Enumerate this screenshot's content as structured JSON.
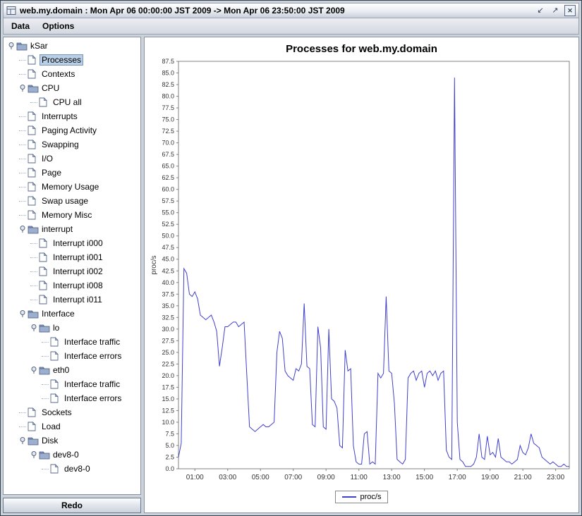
{
  "window": {
    "title": "web.my.domain : Mon Apr 06 00:00:00 JST 2009 -> Mon Apr 06 23:50:00 JST 2009",
    "controls": {
      "iconify_glyph": "↙",
      "maximize_glyph": "↗",
      "close_glyph": "✕"
    }
  },
  "menu": {
    "items": [
      "Data",
      "Options"
    ]
  },
  "tree": {
    "items": [
      {
        "label": "kSar",
        "level": 0,
        "type": "folder",
        "expandable": true
      },
      {
        "label": "Processes",
        "level": 1,
        "type": "leaf",
        "selected": true
      },
      {
        "label": "Contexts",
        "level": 1,
        "type": "leaf"
      },
      {
        "label": "CPU",
        "level": 1,
        "type": "folder",
        "expandable": true
      },
      {
        "label": "CPU all",
        "level": 2,
        "type": "leaf"
      },
      {
        "label": "Interrupts",
        "level": 1,
        "type": "leaf"
      },
      {
        "label": "Paging Activity",
        "level": 1,
        "type": "leaf"
      },
      {
        "label": "Swapping",
        "level": 1,
        "type": "leaf"
      },
      {
        "label": "I/O",
        "level": 1,
        "type": "leaf"
      },
      {
        "label": "Page",
        "level": 1,
        "type": "leaf"
      },
      {
        "label": "Memory Usage",
        "level": 1,
        "type": "leaf"
      },
      {
        "label": "Swap usage",
        "level": 1,
        "type": "leaf"
      },
      {
        "label": "Memory Misc",
        "level": 1,
        "type": "leaf"
      },
      {
        "label": "interrupt",
        "level": 1,
        "type": "folder",
        "expandable": true
      },
      {
        "label": "Interrupt i000",
        "level": 2,
        "type": "leaf"
      },
      {
        "label": "Interrupt i001",
        "level": 2,
        "type": "leaf"
      },
      {
        "label": "Interrupt i002",
        "level": 2,
        "type": "leaf"
      },
      {
        "label": "Interrupt i008",
        "level": 2,
        "type": "leaf"
      },
      {
        "label": "Interrupt i011",
        "level": 2,
        "type": "leaf"
      },
      {
        "label": "Interface",
        "level": 1,
        "type": "folder",
        "expandable": true
      },
      {
        "label": "lo",
        "level": 2,
        "type": "folder",
        "expandable": true
      },
      {
        "label": "Interface traffic",
        "level": 3,
        "type": "leaf"
      },
      {
        "label": "Interface errors",
        "level": 3,
        "type": "leaf"
      },
      {
        "label": "eth0",
        "level": 2,
        "type": "folder",
        "expandable": true
      },
      {
        "label": "Interface traffic",
        "level": 3,
        "type": "leaf"
      },
      {
        "label": "Interface errors",
        "level": 3,
        "type": "leaf"
      },
      {
        "label": "Sockets",
        "level": 1,
        "type": "leaf"
      },
      {
        "label": "Load",
        "level": 1,
        "type": "leaf"
      },
      {
        "label": "Disk",
        "level": 1,
        "type": "folder",
        "expandable": true
      },
      {
        "label": "dev8-0",
        "level": 2,
        "type": "folder",
        "expandable": true
      },
      {
        "label": "dev8-0",
        "level": 3,
        "type": "leaf"
      }
    ],
    "redo_label": "Redo"
  },
  "colors": {
    "series_line": "#4040cc",
    "selection": "#b8cfe5",
    "plot_border": "#808080"
  },
  "icons": {
    "tree_folder": "folder-icon",
    "tree_leaf": "document-icon",
    "tree_knob": "tree-expand-knob"
  },
  "chart_data": {
    "type": "line",
    "title": "Processes for web.my.domain",
    "xlabel": "",
    "ylabel": "proc/s",
    "ylim": [
      0,
      87.5
    ],
    "y_tick_step": 2.5,
    "grid": false,
    "legend_position": "bottom",
    "x_tick_labels": [
      "01:00",
      "03:00",
      "05:00",
      "07:00",
      "09:00",
      "11:00",
      "13:00",
      "15:00",
      "17:00",
      "19:00",
      "21:00",
      "23:00"
    ],
    "x_tick_minutes": [
      60,
      180,
      300,
      420,
      540,
      660,
      780,
      900,
      1020,
      1140,
      1260,
      1380
    ],
    "x_range_minutes": [
      0,
      1430
    ],
    "x_start_minutes": 0,
    "x_interval_minutes": 10,
    "series": [
      {
        "name": "proc/s",
        "color": "#4040cc",
        "values": [
          2.5,
          5.5,
          43,
          42,
          37.5,
          37,
          38,
          36.5,
          33,
          32.5,
          32,
          32.5,
          33,
          31.5,
          29.5,
          22,
          26,
          30.5,
          30.5,
          31,
          31.5,
          31.5,
          30.5,
          31,
          31.5,
          20,
          9,
          8.5,
          8,
          8.5,
          9,
          9.5,
          9,
          9,
          9.5,
          10,
          25,
          29.5,
          28,
          21,
          20,
          19.5,
          19,
          21.5,
          21,
          22.5,
          35.5,
          22,
          21.5,
          9.5,
          9,
          30.5,
          26,
          9,
          8.5,
          30,
          15,
          14.5,
          13,
          5,
          4.5,
          25.5,
          21,
          21.5,
          5,
          1.5,
          1,
          1,
          7.5,
          8,
          1,
          1.5,
          1,
          20.5,
          19.5,
          20.5,
          37,
          21,
          20.5,
          14,
          2,
          1.5,
          1,
          2,
          19.5,
          20.5,
          21,
          19,
          20.5,
          21,
          17.5,
          20.5,
          21,
          20,
          21,
          19,
          20.5,
          21,
          4,
          2.5,
          2,
          84,
          10,
          2,
          1.5,
          0.5,
          0.5,
          0.5,
          1,
          2.5,
          7.5,
          2.5,
          2,
          7,
          3,
          3.5,
          2.5,
          6.5,
          2.5,
          2,
          1.5,
          1.5,
          1,
          1.5,
          2,
          5,
          3.5,
          3,
          4.5,
          7.5,
          5.5,
          5,
          4.5,
          2.5,
          2,
          1.5,
          1,
          1.5,
          1,
          0.5,
          0.5,
          1,
          0.5,
          0.5
        ]
      }
    ]
  }
}
